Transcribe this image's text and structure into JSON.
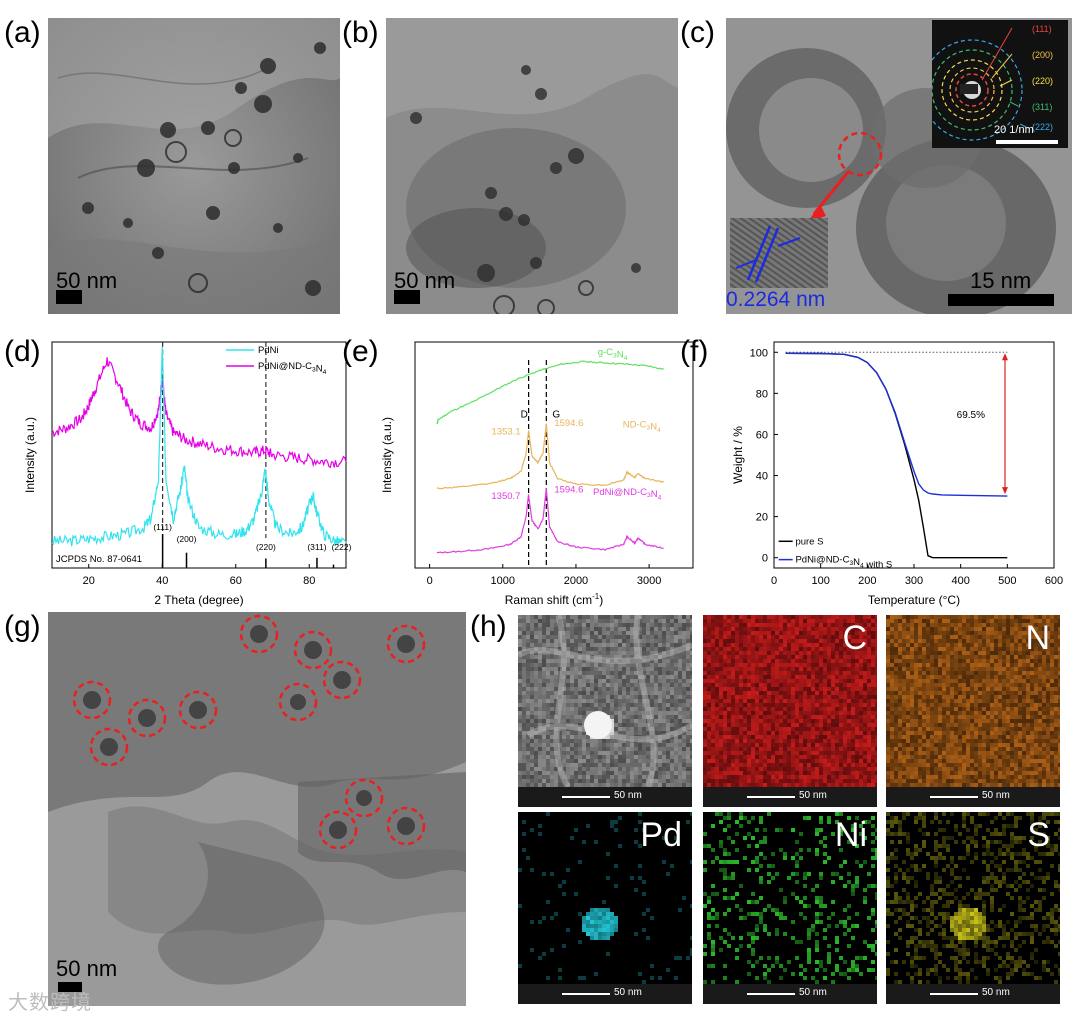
{
  "panel_labels": {
    "a": "(a)",
    "b": "(b)",
    "c": "(c)",
    "d": "(d)",
    "e": "(e)",
    "f": "(f)",
    "g": "(g)",
    "h": "(h)"
  },
  "micrographs": {
    "a": {
      "scale": "50 nm"
    },
    "b": {
      "scale": "50 nm"
    },
    "c": {
      "scale": "15 nm",
      "lattice": "0.2264 nm",
      "saed_scale": "20 1/nm",
      "rings": [
        {
          "label": "(111)",
          "color": "#e8453c"
        },
        {
          "label": "(200)",
          "color": "#f4c34a"
        },
        {
          "label": "(220)",
          "color": "#f4e04a"
        },
        {
          "label": "(311)",
          "color": "#3fbf6f"
        },
        {
          "label": "(222)",
          "color": "#3aa8e0"
        }
      ]
    },
    "g": {
      "scale": "50 nm"
    },
    "h": {
      "tiles": [
        {
          "label": "",
          "color": "#d9d9d9",
          "scale": "50 nm"
        },
        {
          "label": "C",
          "color": "#d21d1d",
          "scale": "50 nm"
        },
        {
          "label": "N",
          "color": "#d9781c",
          "scale": "50 nm"
        },
        {
          "label": "Pd",
          "color": "#22c7d6",
          "scale": "50 nm"
        },
        {
          "label": "Ni",
          "color": "#2fcf2f",
          "scale": "50 nm"
        },
        {
          "label": "S",
          "color": "#c9c21a",
          "scale": "50 nm"
        }
      ]
    }
  },
  "chart_data": [
    {
      "type": "line",
      "panel": "d",
      "xlabel": "2 Theta (degree)",
      "ylabel": "Intensity (a.u.)",
      "xlim": [
        10,
        90
      ],
      "xticks": [
        20,
        40,
        60,
        80
      ],
      "series": [
        {
          "name": "PdNi@ND-C3N4",
          "label_main": "PdNi@ND-C",
          "label_sub": "3",
          "label_mid": "N",
          "label_sub2": "4",
          "color": "#e600e6",
          "x": [
            10,
            14,
            18,
            20,
            22,
            25,
            28,
            31,
            34,
            37,
            39,
            40,
            41,
            43,
            46,
            50,
            55,
            60,
            65,
            68,
            70,
            75,
            80,
            85,
            90
          ],
          "y": [
            0.6,
            0.62,
            0.66,
            0.72,
            0.8,
            0.92,
            0.82,
            0.7,
            0.64,
            0.62,
            0.7,
            0.84,
            0.68,
            0.6,
            0.57,
            0.55,
            0.53,
            0.52,
            0.51,
            0.52,
            0.5,
            0.49,
            0.48,
            0.47,
            0.47
          ]
        },
        {
          "name": "PdNi",
          "color": "#33e3ee",
          "x": [
            10,
            15,
            20,
            25,
            30,
            35,
            37,
            39,
            40,
            41,
            43,
            45,
            46,
            47,
            50,
            55,
            60,
            63,
            65,
            67,
            68,
            69,
            71,
            75,
            78,
            80,
            81,
            82,
            84,
            87,
            90
          ],
          "y": [
            0.12,
            0.12,
            0.13,
            0.14,
            0.15,
            0.18,
            0.22,
            0.4,
            0.98,
            0.4,
            0.22,
            0.35,
            0.45,
            0.3,
            0.18,
            0.15,
            0.15,
            0.17,
            0.22,
            0.33,
            0.44,
            0.3,
            0.18,
            0.15,
            0.18,
            0.28,
            0.32,
            0.25,
            0.15,
            0.12,
            0.11
          ]
        }
      ],
      "reference": {
        "label": "JCPDS No. 87-0641",
        "peaks": [
          {
            "x": 40.1,
            "h": 1.0,
            "label": "(111)"
          },
          {
            "x": 46.6,
            "h": 0.45,
            "label": "(200)"
          },
          {
            "x": 68.2,
            "h": 0.28,
            "label": "(220)"
          },
          {
            "x": 82.1,
            "h": 0.3,
            "label": "(311)"
          },
          {
            "x": 86.6,
            "h": 0.1,
            "label": "(222)"
          }
        ]
      },
      "dashed_x": [
        40.1,
        68.2
      ]
    },
    {
      "type": "line",
      "panel": "e",
      "xlabel": "Raman shift (cm",
      "xlabel_sup": "-1",
      "xlabel_end": ")",
      "ylabel": "Intensity (a.u.)",
      "xlim": [
        -200,
        3600
      ],
      "xticks": [
        0,
        1000,
        2000,
        3000
      ],
      "dashed": [
        {
          "x": 1353,
          "label": "D"
        },
        {
          "x": 1595,
          "label": "G"
        }
      ],
      "series": [
        {
          "name": "g-C3N4",
          "label_main": "g-C",
          "label_sub": "3",
          "label_mid": "N",
          "label_sub2": "4",
          "color": "#5fe05f",
          "x": [
            100,
            120,
            300,
            600,
            900,
            1200,
            1500,
            1800,
            2100,
            2400,
            2700,
            3000,
            3200
          ],
          "y": [
            2.05,
            2.12,
            2.25,
            2.4,
            2.58,
            2.75,
            2.88,
            2.98,
            3.02,
            3.0,
            2.98,
            2.95,
            2.9
          ]
        },
        {
          "name": "ND-C3N4",
          "label_main": "ND-C",
          "label_sub": "3",
          "label_mid": "N",
          "label_sub2": "4",
          "color": "#e8b55a",
          "annot": [
            "1353.1",
            "1594.6"
          ],
          "x": [
            100,
            400,
            800,
            1100,
            1250,
            1320,
            1353,
            1400,
            1480,
            1550,
            1595,
            1640,
            1750,
            2000,
            2400,
            2650,
            2700,
            2800,
            2850,
            2950,
            3200
          ],
          "y": [
            1.05,
            1.07,
            1.12,
            1.2,
            1.32,
            1.6,
            1.95,
            1.55,
            1.45,
            1.6,
            2.05,
            1.45,
            1.2,
            1.12,
            1.1,
            1.18,
            1.3,
            1.22,
            1.28,
            1.2,
            1.15
          ]
        },
        {
          "name": "PdNi@ND-C3N4",
          "label_main": "PdNi@ND-C",
          "label_sub": "3",
          "label_mid": "N",
          "label_sub2": "4",
          "color": "#e13be1",
          "annot": [
            "1350.7",
            "1594.6"
          ],
          "x": [
            100,
            400,
            800,
            1100,
            1250,
            1320,
            1351,
            1400,
            1480,
            1550,
            1595,
            1640,
            1750,
            2000,
            2400,
            2650,
            2700,
            2800,
            2850,
            2950,
            3200
          ],
          "y": [
            0.05,
            0.07,
            0.11,
            0.18,
            0.3,
            0.62,
            0.95,
            0.55,
            0.42,
            0.58,
            1.05,
            0.45,
            0.22,
            0.14,
            0.1,
            0.18,
            0.3,
            0.2,
            0.28,
            0.18,
            0.12
          ]
        }
      ]
    },
    {
      "type": "line",
      "panel": "f",
      "xlabel": "Temperature (",
      "xlabel_deg": "°C)",
      "ylabel": "Weight / %",
      "xlim": [
        0,
        600
      ],
      "ylim": [
        -5,
        105
      ],
      "xticks": [
        0,
        100,
        200,
        300,
        400,
        500,
        600
      ],
      "yticks": [
        0,
        20,
        40,
        60,
        80,
        100
      ],
      "annotation": "69.5%",
      "annot_arrow": {
        "x": 495,
        "y_top": 100,
        "y_bottom": 30.5
      },
      "dotted_y": 100,
      "series": [
        {
          "name": "pure S",
          "color": "#000000",
          "x": [
            25,
            100,
            150,
            180,
            200,
            220,
            240,
            260,
            280,
            300,
            310,
            320,
            330,
            340,
            400,
            500
          ],
          "y": [
            99.5,
            99.4,
            99.0,
            97.5,
            95.0,
            90.0,
            82.0,
            70.0,
            55.0,
            38.0,
            28.0,
            15.0,
            1.0,
            0.0,
            0.0,
            0.0
          ]
        },
        {
          "name": "PdNi@ND-C3N4 with S",
          "label_main": "PdNi@ND-C",
          "label_sub": "3",
          "label_mid": "N",
          "label_sub2": "4",
          "label_end": " with S",
          "color": "#1f2fd6",
          "x": [
            25,
            100,
            150,
            180,
            200,
            220,
            240,
            260,
            280,
            300,
            310,
            320,
            330,
            340,
            360,
            400,
            450,
            500
          ],
          "y": [
            99.5,
            99.4,
            99.0,
            97.5,
            95.0,
            90.0,
            82.0,
            70.5,
            56.0,
            42.0,
            36.0,
            33.0,
            31.5,
            31.0,
            30.6,
            30.4,
            30.2,
            30.0
          ]
        }
      ]
    }
  ],
  "watermark": "大数跨境"
}
